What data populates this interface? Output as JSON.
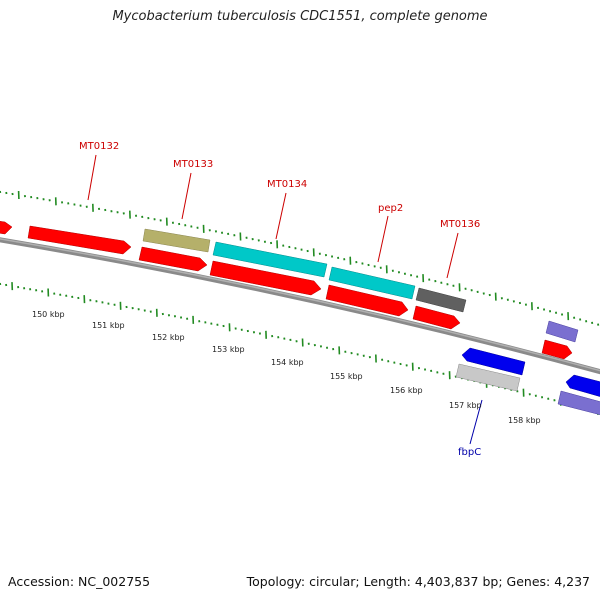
{
  "title": "Mycobacterium tuberculosis CDC1551, complete genome",
  "footer": {
    "accession": "Accession: NC_002755",
    "topology": "Topology: circular; Length: 4,403,837 bp; Genes: 4,237"
  },
  "colors": {
    "cds": "#ff0000",
    "olive": "#b5b06a",
    "cyan": "#00c8c8",
    "gray": "#606060",
    "blue": "#0000ee",
    "lilac": "#7a6fd0",
    "light": "#c8c8c8",
    "backbone": "#8a8a8a",
    "tick": "#228b22",
    "label_red": "#cc0000",
    "label_blue": "#0000aa"
  },
  "kbp_labels": [
    "150 kbp",
    "151 kbp",
    "152 kbp",
    "153 kbp",
    "154 kbp",
    "155 kbp",
    "156 kbp",
    "157 kbp",
    "158 kbp"
  ],
  "gene_labels": [
    "MT0132",
    "MT0133",
    "MT0134",
    "pep2",
    "MT0136",
    "fbpC"
  ]
}
